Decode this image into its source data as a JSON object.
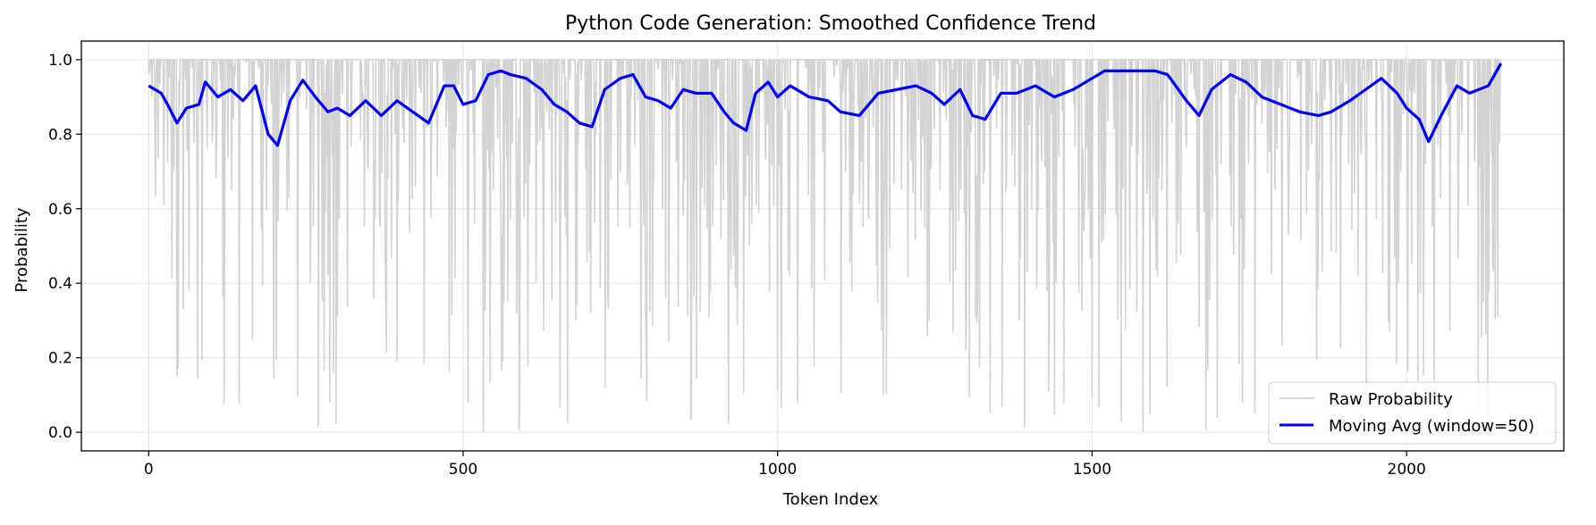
{
  "chart_data": {
    "type": "line",
    "title": "Python Code Generation: Smoothed Confidence Trend",
    "xlabel": "Token Index",
    "ylabel": "Probability",
    "xlim": [
      -107,
      2250
    ],
    "ylim": [
      -0.05,
      1.05
    ],
    "xticks": [
      0,
      500,
      1000,
      1500,
      2000
    ],
    "yticks": [
      0.0,
      0.2,
      0.4,
      0.6,
      0.8,
      1.0
    ],
    "grid": true,
    "legend_position": "bottom-right",
    "series": [
      {
        "name": "Raw Probability",
        "color": "#d3d3d3",
        "n_points": 2150,
        "typical_value": 1.0,
        "dips_note": "frequent sharp drops toward 0.0–0.8 across entire range"
      },
      {
        "name": "Moving Avg (window=50)",
        "color": "#0000ff",
        "x": [
          0,
          20,
          30,
          45,
          60,
          80,
          90,
          110,
          130,
          150,
          170,
          190,
          205,
          225,
          245,
          265,
          285,
          300,
          320,
          345,
          370,
          395,
          420,
          445,
          470,
          485,
          500,
          520,
          540,
          560,
          575,
          600,
          625,
          645,
          665,
          685,
          705,
          725,
          750,
          770,
          790,
          810,
          830,
          850,
          870,
          895,
          915,
          930,
          950,
          965,
          985,
          1000,
          1020,
          1050,
          1080,
          1100,
          1130,
          1160,
          1190,
          1220,
          1245,
          1265,
          1290,
          1310,
          1330,
          1355,
          1380,
          1410,
          1440,
          1470,
          1500,
          1520,
          1545,
          1570,
          1600,
          1620,
          1650,
          1670,
          1690,
          1720,
          1745,
          1770,
          1800,
          1830,
          1860,
          1880,
          1910,
          1935,
          1960,
          1985,
          2000,
          2020,
          2035,
          2055,
          2080,
          2100,
          2130,
          2150
        ],
        "values": [
          0.93,
          0.91,
          0.88,
          0.83,
          0.87,
          0.88,
          0.94,
          0.9,
          0.92,
          0.89,
          0.93,
          0.8,
          0.77,
          0.89,
          0.945,
          0.9,
          0.86,
          0.87,
          0.85,
          0.89,
          0.85,
          0.89,
          0.86,
          0.83,
          0.93,
          0.93,
          0.88,
          0.89,
          0.96,
          0.97,
          0.96,
          0.95,
          0.92,
          0.88,
          0.86,
          0.83,
          0.82,
          0.92,
          0.95,
          0.96,
          0.9,
          0.89,
          0.87,
          0.92,
          0.91,
          0.91,
          0.86,
          0.83,
          0.81,
          0.91,
          0.94,
          0.9,
          0.93,
          0.9,
          0.89,
          0.86,
          0.85,
          0.91,
          0.92,
          0.93,
          0.91,
          0.88,
          0.92,
          0.85,
          0.84,
          0.91,
          0.91,
          0.93,
          0.9,
          0.92,
          0.95,
          0.97,
          0.97,
          0.97,
          0.97,
          0.96,
          0.89,
          0.85,
          0.92,
          0.96,
          0.94,
          0.9,
          0.88,
          0.86,
          0.85,
          0.86,
          0.89,
          0.92,
          0.95,
          0.91,
          0.87,
          0.84,
          0.78,
          0.85,
          0.93,
          0.91,
          0.93,
          0.99
        ]
      }
    ]
  }
}
